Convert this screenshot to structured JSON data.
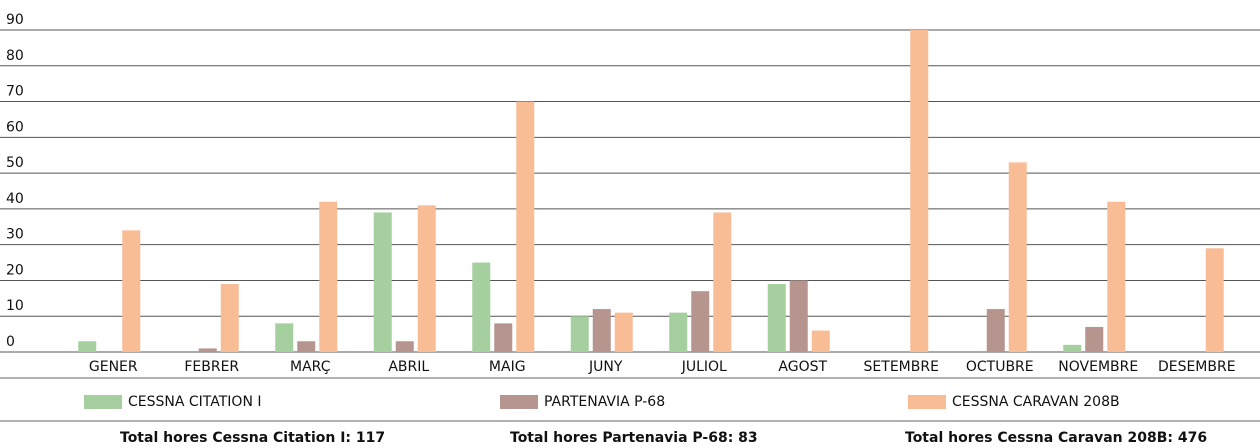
{
  "chart_data": {
    "type": "bar",
    "categories": [
      "GENER",
      "FEBRER",
      "MARÇ",
      "ABRIL",
      "MAIG",
      "JUNY",
      "JULIOL",
      "AGOST",
      "SETEMBRE",
      "OCTUBRE",
      "NOVEMBRE",
      "DESEMBRE"
    ],
    "series": [
      {
        "name": "CESSNA CITATION I",
        "color": "#a6cf9f",
        "values": [
          3,
          0,
          8,
          39,
          25,
          10,
          11,
          19,
          0,
          0,
          2,
          0
        ]
      },
      {
        "name": "PARTENAVIA P-68",
        "color": "#b5958e",
        "values": [
          0,
          1,
          3,
          3,
          8,
          12,
          17,
          20,
          0,
          12,
          7,
          0
        ]
      },
      {
        "name": "CESSNA CARAVAN 208B",
        "color": "#f9bd96",
        "values": [
          34,
          19,
          42,
          41,
          70,
          11,
          39,
          6,
          90,
          53,
          42,
          29
        ]
      }
    ],
    "ylim": [
      0,
      90
    ],
    "yticks": [
      0,
      10,
      20,
      30,
      40,
      50,
      60,
      70,
      80,
      90
    ],
    "grid": true,
    "legend": "bottom",
    "totals": [
      "Total hores Cessna Citation I: 117",
      "Total hores Partenavia P-68: 83",
      "Total hores Cessna Caravan 208B: 476"
    ]
  }
}
